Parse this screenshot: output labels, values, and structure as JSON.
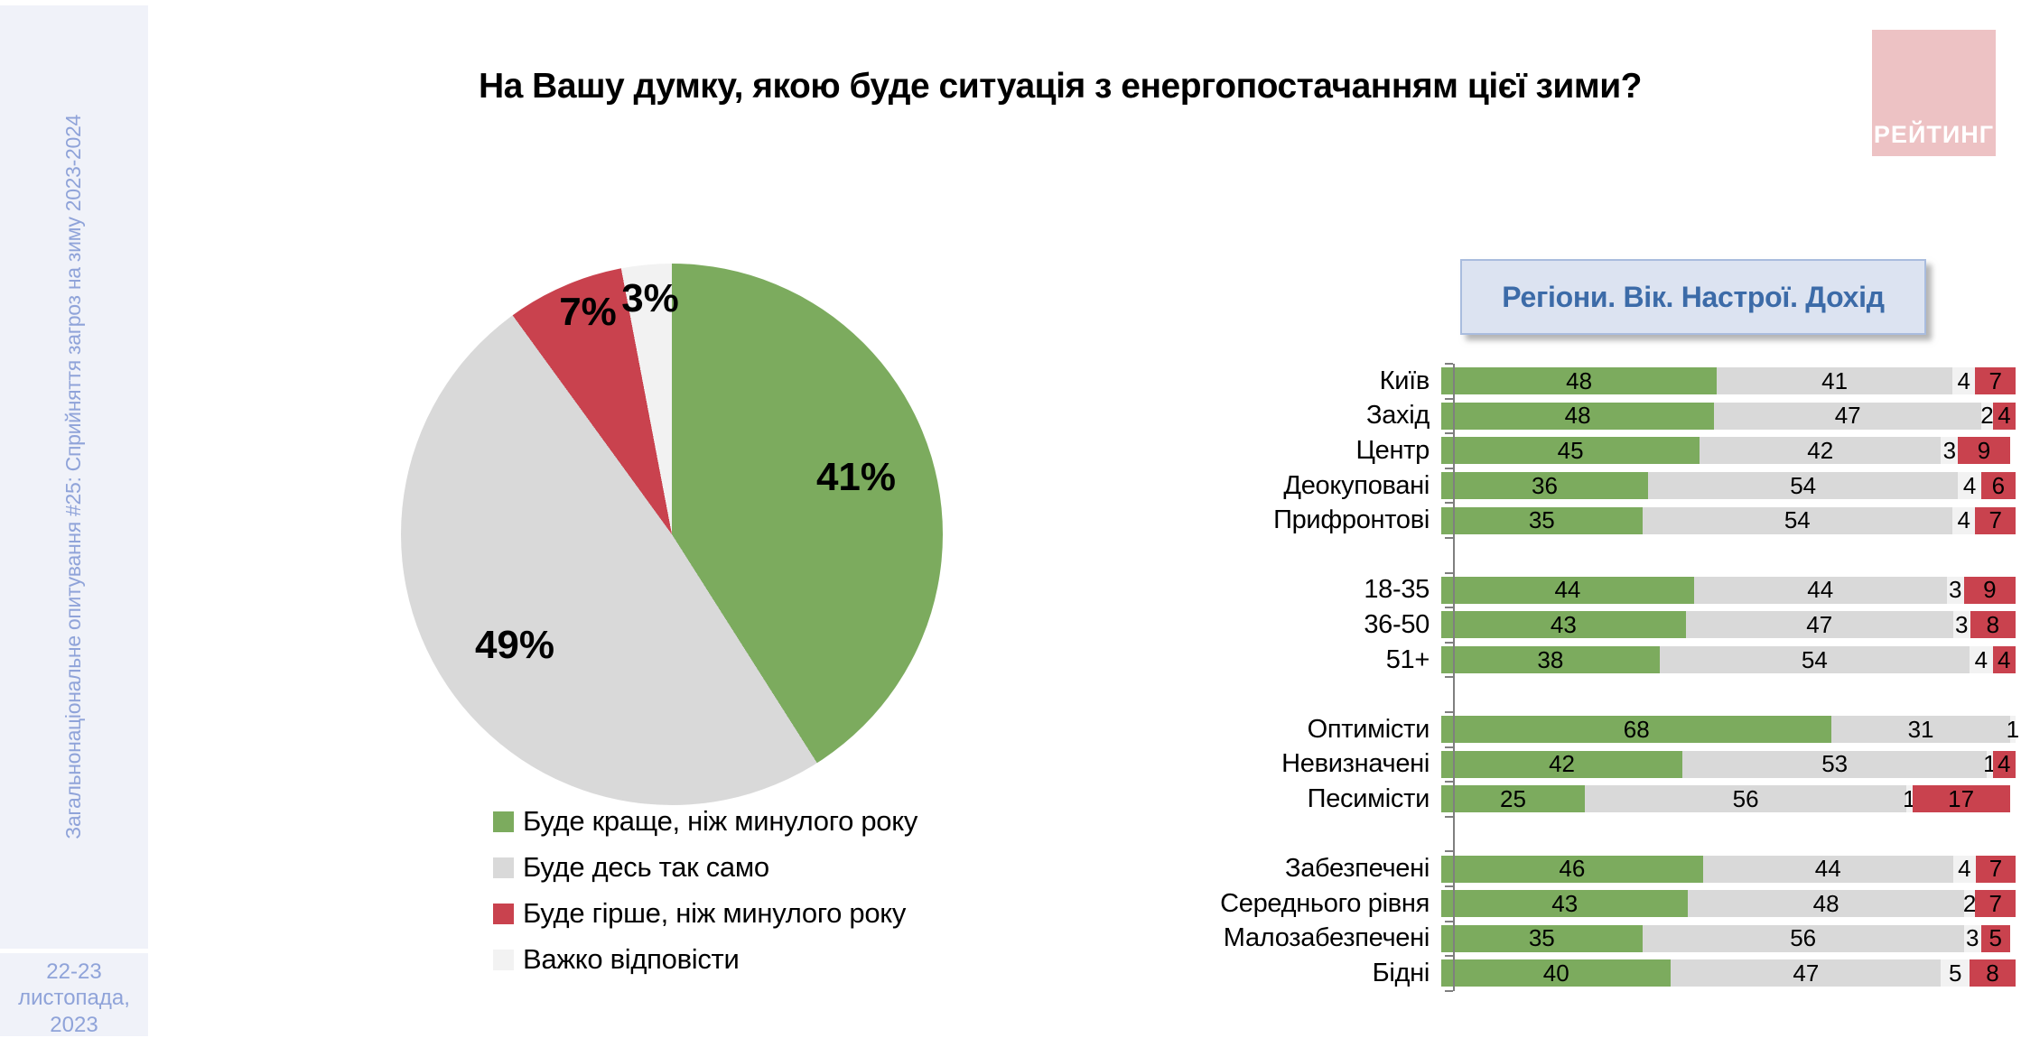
{
  "sidebar": {
    "survey_label": "Загальнонаціональне опитування #25: Сприйняття загроз на зиму 2023-2024",
    "date": "22-23 листопада, 2023"
  },
  "header": {
    "title": "На Вашу думку, якою буде ситуація з енергопостачанням цієї зими?"
  },
  "logo": {
    "text": "РЕЙТИНГ"
  },
  "right_panel": {
    "header": "Регіони. Вік. Настрої. Дохід"
  },
  "colors": {
    "better": "#7CAB5E",
    "same": "#D9D9D9",
    "worse": "#C9424E",
    "hard": "#F2F2F2",
    "accent_blue": "#3C6BA8",
    "sidebar_text": "#8FA3D9",
    "logo_pink": "#EDC2C4"
  },
  "legend": [
    {
      "key": "better",
      "label": "Буде краще, ніж минулого року"
    },
    {
      "key": "same",
      "label": "Буде десь так само"
    },
    {
      "key": "worse",
      "label": "Буде гірше, ніж минулого року"
    },
    {
      "key": "hard",
      "label": "Важко відповісти"
    }
  ],
  "chart_data": [
    {
      "type": "pie",
      "title": "На Вашу думку, якою буде ситуація з енергопостачанням цієї зими?",
      "value_suffix": "%",
      "start_angle_deg": 0,
      "direction": "clockwise",
      "legend_position": "bottom-left",
      "slices": [
        {
          "label": "Буде краще, ніж минулого року",
          "value": 41,
          "color_key": "better"
        },
        {
          "label": "Буде десь так само",
          "value": 49,
          "color_key": "same"
        },
        {
          "label": "Буде гірше, ніж минулого року",
          "value": 7,
          "color_key": "worse"
        },
        {
          "label": "Важко відповісти",
          "value": 3,
          "color_key": "hard"
        }
      ]
    },
    {
      "type": "bar",
      "orientation": "horizontal",
      "stacked": true,
      "x_max": 100,
      "title": "Регіони. Вік. Настрої. Дохід",
      "series_order": [
        "better",
        "same",
        "hard",
        "worse"
      ],
      "series_labels": {
        "better": "Буде краще, ніж минулого року",
        "same": "Буде десь так само",
        "hard": "Важко відповісти",
        "worse": "Буде гірше, ніж минулого року"
      },
      "groups": [
        {
          "name": "Регіони",
          "rows": [
            {
              "label": "Київ",
              "values": {
                "better": 48,
                "same": 41,
                "hard": 4,
                "worse": 7
              }
            },
            {
              "label": "Захід",
              "values": {
                "better": 48,
                "same": 47,
                "hard": 2,
                "worse": 4
              }
            },
            {
              "label": "Центр",
              "values": {
                "better": 45,
                "same": 42,
                "hard": 3,
                "worse": 9
              }
            },
            {
              "label": "Деокуповані",
              "values": {
                "better": 36,
                "same": 54,
                "hard": 4,
                "worse": 6
              }
            },
            {
              "label": "Прифронтові",
              "values": {
                "better": 35,
                "same": 54,
                "hard": 4,
                "worse": 7
              }
            }
          ]
        },
        {
          "name": "Вік",
          "rows": [
            {
              "label": "18-35",
              "values": {
                "better": 44,
                "same": 44,
                "hard": 3,
                "worse": 9
              }
            },
            {
              "label": "36-50",
              "values": {
                "better": 43,
                "same": 47,
                "hard": 3,
                "worse": 8
              }
            },
            {
              "label": "51+",
              "values": {
                "better": 38,
                "same": 54,
                "hard": 4,
                "worse": 4
              }
            }
          ]
        },
        {
          "name": "Настрої",
          "rows": [
            {
              "label": "Оптимісти",
              "values": {
                "better": 68,
                "same": 31,
                "hard": 1,
                "worse": 0
              }
            },
            {
              "label": "Невизначені",
              "values": {
                "better": 42,
                "same": 53,
                "hard": 1,
                "worse": 4
              }
            },
            {
              "label": "Песимісти",
              "values": {
                "better": 25,
                "same": 56,
                "hard": 1,
                "worse": 17
              }
            }
          ]
        },
        {
          "name": "Дохід",
          "rows": [
            {
              "label": "Забезпечені",
              "values": {
                "better": 46,
                "same": 44,
                "hard": 4,
                "worse": 7
              }
            },
            {
              "label": "Середнього рівня",
              "values": {
                "better": 43,
                "same": 48,
                "hard": 2,
                "worse": 7
              }
            },
            {
              "label": "Малозабезпечені",
              "values": {
                "better": 35,
                "same": 56,
                "hard": 3,
                "worse": 5
              }
            },
            {
              "label": "Бідні",
              "values": {
                "better": 40,
                "same": 47,
                "hard": 5,
                "worse": 8
              }
            }
          ]
        }
      ]
    }
  ]
}
